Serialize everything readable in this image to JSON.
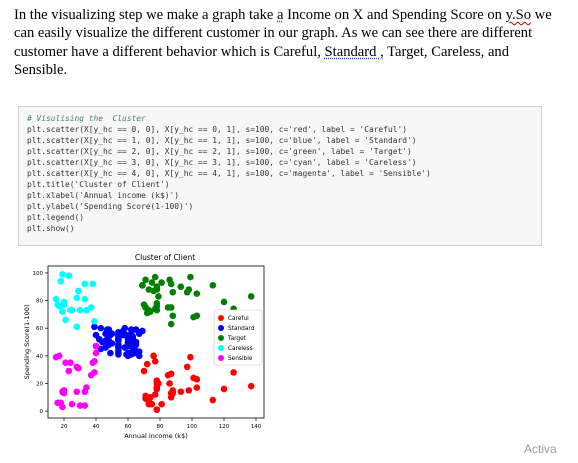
{
  "paragraph": {
    "p1": "In the visualizing step we make a graph take ",
    "p2": "a",
    "p3": " Income on X and Spending Score on ",
    "p4": "y.So",
    "p5": " we can easily visualize the different customer in our graph. As we can see there are different customer have a different behavior which is Careful, ",
    "p6": "Standard ,",
    "p7": " Target, Careless, and Sensible."
  },
  "code": {
    "comment": "# Visulising the  Cluster",
    "lines": [
      "plt.scatter(X[y_hc == 0, 0], X[y_hc == 0, 1], s=100, c='red', label = 'Careful')",
      "plt.scatter(X[y_hc == 1, 0], X[y_hc == 1, 1], s=100, c='blue', label = 'Standard')",
      "plt.scatter(X[y_hc == 2, 0], X[y_hc == 2, 1], s=100, c='green', label = 'Target')",
      "plt.scatter(X[y_hc == 3, 0], X[y_hc == 3, 1], s=100, c='cyan', label = 'Careless')",
      "plt.scatter(X[y_hc == 4, 0], X[y_hc == 4, 1], s=100, c='magenta', label = 'Sensible')",
      "plt.title('Cluster of Client')",
      "plt.xlabel('Annual income (k$)')",
      "plt.ylabel('Spending Score(1-100)')",
      "plt.legend()",
      "plt.show()"
    ]
  },
  "watermark": "Activa",
  "chart_data": {
    "type": "scatter",
    "title": "Cluster of Client",
    "xlabel": "Annual income (k$)",
    "ylabel": "Spending Score(1-100)",
    "xlim": [
      10,
      145
    ],
    "ylim": [
      -5,
      105
    ],
    "xticks": [
      20,
      40,
      60,
      80,
      100,
      120,
      140
    ],
    "yticks": [
      0,
      20,
      40,
      60,
      80,
      100
    ],
    "legend_position": "center-right",
    "grid": false,
    "series": [
      {
        "name": "Careful",
        "color": "#ff0000",
        "points": [
          [
            70,
            29
          ],
          [
            71,
            11
          ],
          [
            71,
            9
          ],
          [
            72,
            34
          ],
          [
            73,
            5
          ],
          [
            73,
            7
          ],
          [
            74,
            10
          ],
          [
            75,
            5
          ],
          [
            76,
            40
          ],
          [
            77,
            12
          ],
          [
            77,
            36
          ],
          [
            78,
            22
          ],
          [
            78,
            17
          ],
          [
            78,
            20
          ],
          [
            78,
            16
          ],
          [
            78,
            1
          ],
          [
            78,
            1
          ],
          [
            78,
            22
          ],
          [
            79,
            20
          ],
          [
            81,
            5
          ],
          [
            85,
            26
          ],
          [
            86,
            20
          ],
          [
            87,
            27
          ],
          [
            87,
            13
          ],
          [
            87,
            10
          ],
          [
            88,
            13
          ],
          [
            88,
            15
          ],
          [
            93,
            14
          ],
          [
            97,
            32
          ],
          [
            98,
            15
          ],
          [
            99,
            39
          ],
          [
            101,
            24
          ],
          [
            103,
            17
          ],
          [
            103,
            23
          ],
          [
            113,
            8
          ],
          [
            120,
            16
          ],
          [
            126,
            28
          ],
          [
            137,
            18
          ]
        ]
      },
      {
        "name": "Standard",
        "color": "#0000ff",
        "points": [
          [
            39,
            61
          ],
          [
            40,
            55
          ],
          [
            40,
            47
          ],
          [
            42,
            52
          ],
          [
            43,
            60
          ],
          [
            43,
            45
          ],
          [
            44,
            50
          ],
          [
            46,
            51
          ],
          [
            46,
            46
          ],
          [
            46,
            56
          ],
          [
            47,
            52
          ],
          [
            47,
            59
          ],
          [
            48,
            51
          ],
          [
            48,
            59
          ],
          [
            48,
            50
          ],
          [
            48,
            48
          ],
          [
            49,
            55
          ],
          [
            49,
            42
          ],
          [
            50,
            49
          ],
          [
            50,
            56
          ],
          [
            54,
            47
          ],
          [
            54,
            54
          ],
          [
            54,
            53
          ],
          [
            54,
            48
          ],
          [
            54,
            52
          ],
          [
            54,
            42
          ],
          [
            54,
            51
          ],
          [
            54,
            55
          ],
          [
            54,
            41
          ],
          [
            54,
            44
          ],
          [
            54,
            57
          ],
          [
            54,
            46
          ],
          [
            57,
            58
          ],
          [
            57,
            55
          ],
          [
            58,
            60
          ],
          [
            58,
            46
          ],
          [
            59,
            55
          ],
          [
            59,
            41
          ],
          [
            60,
            49
          ],
          [
            60,
            40
          ],
          [
            60,
            42
          ],
          [
            60,
            52
          ],
          [
            60,
            47
          ],
          [
            60,
            50
          ],
          [
            61,
            42
          ],
          [
            61,
            49
          ],
          [
            62,
            41
          ],
          [
            62,
            48
          ],
          [
            62,
            59
          ],
          [
            62,
            55
          ],
          [
            62,
            56
          ],
          [
            62,
            42
          ],
          [
            63,
            50
          ],
          [
            63,
            46
          ],
          [
            63,
            43
          ],
          [
            63,
            48
          ],
          [
            63,
            52
          ],
          [
            63,
            54
          ],
          [
            64,
            42
          ],
          [
            64,
            46
          ],
          [
            65,
            48
          ],
          [
            65,
            50
          ],
          [
            65,
            43
          ],
          [
            65,
            59
          ],
          [
            67,
            43
          ],
          [
            67,
            57
          ],
          [
            67,
            56
          ],
          [
            67,
            40
          ],
          [
            69,
            58
          ],
          [
            69,
            91
          ]
        ]
      },
      {
        "name": "Target",
        "color": "#008000",
        "points": [
          [
            69,
            91
          ],
          [
            70,
            77
          ],
          [
            71,
            95
          ],
          [
            71,
            75
          ],
          [
            71,
            75
          ],
          [
            72,
            71
          ],
          [
            73,
            88
          ],
          [
            73,
            73
          ],
          [
            74,
            72
          ],
          [
            75,
            93
          ],
          [
            76,
            87
          ],
          [
            77,
            97
          ],
          [
            77,
            74
          ],
          [
            78,
            90
          ],
          [
            78,
            88
          ],
          [
            78,
            76
          ],
          [
            78,
            89
          ],
          [
            78,
            78
          ],
          [
            78,
            73
          ],
          [
            79,
            83
          ],
          [
            81,
            93
          ],
          [
            85,
            75
          ],
          [
            86,
            95
          ],
          [
            87,
            63
          ],
          [
            87,
            75
          ],
          [
            87,
            92
          ],
          [
            88,
            86
          ],
          [
            88,
            69
          ],
          [
            93,
            90
          ],
          [
            97,
            86
          ],
          [
            98,
            88
          ],
          [
            99,
            97
          ],
          [
            101,
            68
          ],
          [
            103,
            85
          ],
          [
            103,
            69
          ],
          [
            113,
            91
          ],
          [
            120,
            79
          ],
          [
            126,
            74
          ],
          [
            137,
            83
          ]
        ]
      },
      {
        "name": "Careless",
        "color": "#00ffff",
        "points": [
          [
            15,
            81
          ],
          [
            16,
            77
          ],
          [
            17,
            76
          ],
          [
            18,
            94
          ],
          [
            19,
            72
          ],
          [
            19,
            99
          ],
          [
            20,
            77
          ],
          [
            20,
            79
          ],
          [
            21,
            66
          ],
          [
            23,
            98
          ],
          [
            24,
            73
          ],
          [
            25,
            73
          ],
          [
            28,
            82
          ],
          [
            28,
            61
          ],
          [
            29,
            87
          ],
          [
            30,
            73
          ],
          [
            33,
            92
          ],
          [
            33,
            81
          ],
          [
            34,
            73
          ],
          [
            37,
            75
          ],
          [
            38,
            92
          ],
          [
            39,
            65
          ]
        ]
      },
      {
        "name": "Sensible",
        "color": "#ff00ff",
        "points": [
          [
            15,
            39
          ],
          [
            16,
            6
          ],
          [
            17,
            40
          ],
          [
            18,
            6
          ],
          [
            19,
            3
          ],
          [
            19,
            14
          ],
          [
            20,
            15
          ],
          [
            20,
            13
          ],
          [
            21,
            35
          ],
          [
            23,
            29
          ],
          [
            24,
            35
          ],
          [
            25,
            5
          ],
          [
            28,
            14
          ],
          [
            28,
            32
          ],
          [
            29,
            31
          ],
          [
            30,
            4
          ],
          [
            33,
            4
          ],
          [
            33,
            14
          ],
          [
            34,
            17
          ],
          [
            37,
            26
          ],
          [
            38,
            35
          ],
          [
            39,
            36
          ],
          [
            39,
            28
          ],
          [
            40,
            42
          ],
          [
            40,
            47
          ]
        ]
      }
    ]
  }
}
